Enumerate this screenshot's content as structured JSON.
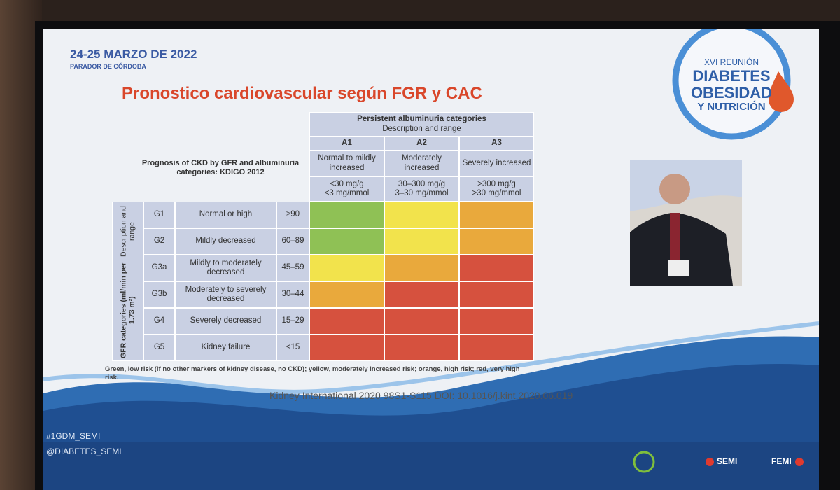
{
  "header": {
    "date": "24-25 MARZO DE 2022",
    "venue": "PARADOR DE CÓRDOBA",
    "logo": [
      "XVI REUNIÓN",
      "DIABETES",
      "OBESIDAD",
      "Y NUTRICIÓN"
    ]
  },
  "title": "Pronostico cardiovascular según FGR y CAC",
  "table": {
    "corner": "Prognosis of CKD by GFR and albuminuria categories: KDIGO 2012",
    "column_group": [
      "Persistent albuminuria categories",
      "Description and range"
    ],
    "columns": [
      {
        "code": "A1",
        "description": "Normal to mildly increased",
        "range": [
          "<30 mg/g",
          "<3 mg/mmol"
        ]
      },
      {
        "code": "A2",
        "description": "Moderately increased",
        "range": [
          "30–300 mg/g",
          "3–30 mg/mmol"
        ]
      },
      {
        "code": "A3",
        "description": "Severely increased",
        "range": [
          ">300 mg/g",
          ">30 mg/mmol"
        ]
      }
    ],
    "row_group": [
      "GFR categories (ml/min per 1.73 m²)",
      "Description and range"
    ],
    "rows": [
      {
        "code": "G1",
        "description": "Normal or high",
        "range": "≥90",
        "colors": [
          "#8fc155",
          "#f2e34c",
          "#e9a93c"
        ]
      },
      {
        "code": "G2",
        "description": "Mildly decreased",
        "range": "60–89",
        "colors": [
          "#8fc155",
          "#f2e34c",
          "#e9a93c"
        ]
      },
      {
        "code": "G3a",
        "description": "Mildly to moderately decreased",
        "range": "45–59",
        "colors": [
          "#f2e34c",
          "#e9a93c",
          "#d6513e"
        ]
      },
      {
        "code": "G3b",
        "description": "Moderately to severely decreased",
        "range": "30–44",
        "colors": [
          "#e9a93c",
          "#d6513e",
          "#d6513e"
        ]
      },
      {
        "code": "G4",
        "description": "Severely decreased",
        "range": "15–29",
        "colors": [
          "#d6513e",
          "#d6513e",
          "#d6513e"
        ]
      },
      {
        "code": "G5",
        "description": "Kidney failure",
        "range": "<15",
        "colors": [
          "#d6513e",
          "#d6513e",
          "#d6513e"
        ]
      }
    ],
    "footnote": "Green, low risk (if no other markers of kidney disease, no CKD); yellow, moderately increased risk; orange, high risk; red, very high risk."
  },
  "citation": "Kidney International 2020 98S1-S115 DOI: 10.1016/j.kint.2020.06.019",
  "footer": {
    "hashtags": [
      "#1GDM_SEMI",
      "@DIABETES_SEMI"
    ],
    "logos": [
      "SEMI",
      "FEMI"
    ]
  }
}
